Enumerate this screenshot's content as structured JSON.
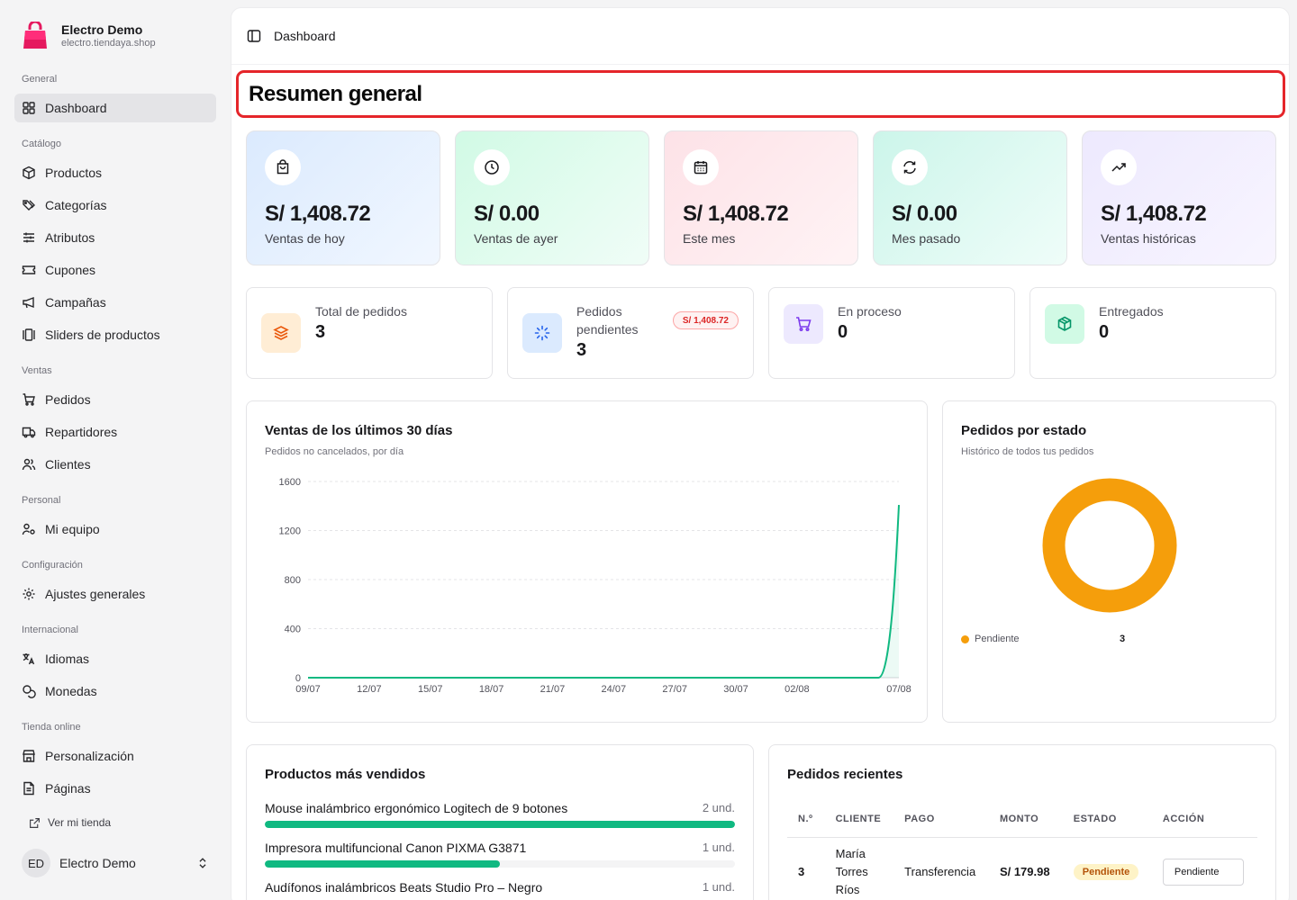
{
  "brand": {
    "name": "Electro Demo",
    "domain": "electro.tiendaya.shop"
  },
  "sidebar": {
    "groups": [
      {
        "label": "General",
        "items": [
          {
            "label": "Dashboard",
            "icon": "dashboard-icon",
            "active": true
          }
        ]
      },
      {
        "label": "Catálogo",
        "items": [
          {
            "label": "Productos",
            "icon": "box-icon"
          },
          {
            "label": "Categorías",
            "icon": "tags-icon"
          },
          {
            "label": "Atributos",
            "icon": "sliders-icon"
          },
          {
            "label": "Cupones",
            "icon": "ticket-icon"
          },
          {
            "label": "Campañas",
            "icon": "megaphone-icon"
          },
          {
            "label": "Sliders de productos",
            "icon": "gallery-icon"
          }
        ]
      },
      {
        "label": "Ventas",
        "items": [
          {
            "label": "Pedidos",
            "icon": "cart-icon"
          },
          {
            "label": "Repartidores",
            "icon": "truck-icon"
          },
          {
            "label": "Clientes",
            "icon": "users-icon"
          }
        ]
      },
      {
        "label": "Personal",
        "items": [
          {
            "label": "Mi equipo",
            "icon": "user-key-icon"
          }
        ]
      },
      {
        "label": "Configuración",
        "items": [
          {
            "label": "Ajustes generales",
            "icon": "gear-icon"
          }
        ]
      },
      {
        "label": "Internacional",
        "items": [
          {
            "label": "Idiomas",
            "icon": "languages-icon"
          },
          {
            "label": "Monedas",
            "icon": "coins-icon"
          }
        ]
      },
      {
        "label": "Tienda online",
        "items": [
          {
            "label": "Personalización",
            "icon": "store-icon"
          },
          {
            "label": "Páginas",
            "icon": "file-icon"
          }
        ]
      }
    ],
    "view_store": "Ver mi tienda",
    "user": {
      "initials": "ED",
      "name": "Electro Demo"
    }
  },
  "topbar": {
    "breadcrumb": "Dashboard"
  },
  "page": {
    "title": "Resumen general"
  },
  "kpis": [
    {
      "value": "S/ 1,408.72",
      "label": "Ventas de hoy",
      "icon": "shopping-bag-icon",
      "color": "#e0efff"
    },
    {
      "value": "S/ 0.00",
      "label": "Ventas de ayer",
      "icon": "clock-icon",
      "color": "#d9f7ea"
    },
    {
      "value": "S/ 1,408.72",
      "label": "Este mes",
      "icon": "calendar-icon",
      "color": "#fde2e7"
    },
    {
      "value": "S/ 0.00",
      "label": "Mes pasado",
      "icon": "refresh-icon",
      "color": "#d3f7ee"
    },
    {
      "value": "S/ 1,408.72",
      "label": "Ventas históricas",
      "icon": "trending-up-icon",
      "color": "#efe9fc"
    }
  ],
  "stats": [
    {
      "label": "Total de pedidos",
      "value": "3",
      "icon": "layers-icon",
      "color": "#ffedd5",
      "icon_color": "#ea580c"
    },
    {
      "label_line1": "Pedidos",
      "label_line2": "pendientes",
      "value": "3",
      "badge": "S/ 1,408.72",
      "icon": "loader-icon",
      "color": "#dbeafe",
      "icon_color": "#2563eb"
    },
    {
      "label": "En proceso",
      "value": "0",
      "icon": "cart-icon",
      "color": "#ede9fe",
      "icon_color": "#7c3aed"
    },
    {
      "label": "Entregados",
      "value": "0",
      "icon": "package-check-icon",
      "color": "#d1fae5",
      "icon_color": "#059669"
    }
  ],
  "sales_chart": {
    "title": "Ventas de los últimos 30 días",
    "subtitle": "Pedidos no cancelados, por día"
  },
  "chart_data": [
    {
      "type": "area",
      "title": "Ventas de los últimos 30 días",
      "x_tick_labels": [
        "09/07",
        "12/07",
        "15/07",
        "18/07",
        "21/07",
        "24/07",
        "27/07",
        "30/07",
        "02/08",
        "07/08"
      ],
      "y_ticks": [
        0,
        400,
        800,
        1200,
        1600
      ],
      "ylim": [
        0,
        1600
      ],
      "x": [
        "09/07",
        "10/07",
        "11/07",
        "12/07",
        "13/07",
        "14/07",
        "15/07",
        "16/07",
        "17/07",
        "18/07",
        "19/07",
        "20/07",
        "21/07",
        "22/07",
        "23/07",
        "24/07",
        "25/07",
        "26/07",
        "27/07",
        "28/07",
        "29/07",
        "30/07",
        "31/07",
        "01/08",
        "02/08",
        "03/08",
        "04/08",
        "05/08",
        "06/08",
        "07/08"
      ],
      "values": [
        0,
        0,
        0,
        0,
        0,
        0,
        0,
        0,
        0,
        0,
        0,
        0,
        0,
        0,
        0,
        0,
        0,
        0,
        0,
        0,
        0,
        0,
        0,
        0,
        0,
        0,
        0,
        0,
        0,
        1408.72
      ],
      "color": "#10b981",
      "grid": true
    },
    {
      "type": "pie",
      "title": "Pedidos por estado",
      "subtitle": "Histórico de todos tus pedidos",
      "categories": [
        "Pendiente"
      ],
      "values": [
        3
      ],
      "colors": [
        "#f59e0b"
      ]
    }
  ],
  "status_chart": {
    "title": "Pedidos por estado",
    "subtitle": "Histórico de todos tus pedidos",
    "legend_label": "Pendiente",
    "legend_count": "3"
  },
  "top_products": {
    "title": "Productos más vendidos",
    "items": [
      {
        "name": "Mouse inalámbrico ergonómico Logitech de 9 botones",
        "qty": "2 und.",
        "fill": 1.0
      },
      {
        "name": "Impresora multifuncional Canon PIXMA G3871",
        "qty": "1 und.",
        "fill": 0.5
      },
      {
        "name": "Audífonos inalámbricos Beats Studio Pro – Negro",
        "qty": "1 und.",
        "fill": 0.5
      }
    ]
  },
  "recent_orders": {
    "title": "Pedidos recientes",
    "headers": [
      "N.º",
      "CLIENTE",
      "PAGO",
      "MONTO",
      "ESTADO",
      "ACCIÓN"
    ],
    "rows": [
      {
        "num": "3",
        "client_l1": "María",
        "client_l2": "Torres",
        "client_l3": "Ríos",
        "payment": "Transferencia",
        "amount": "S/ 179.98",
        "status": "Pendiente",
        "action": "Pendiente"
      }
    ]
  }
}
